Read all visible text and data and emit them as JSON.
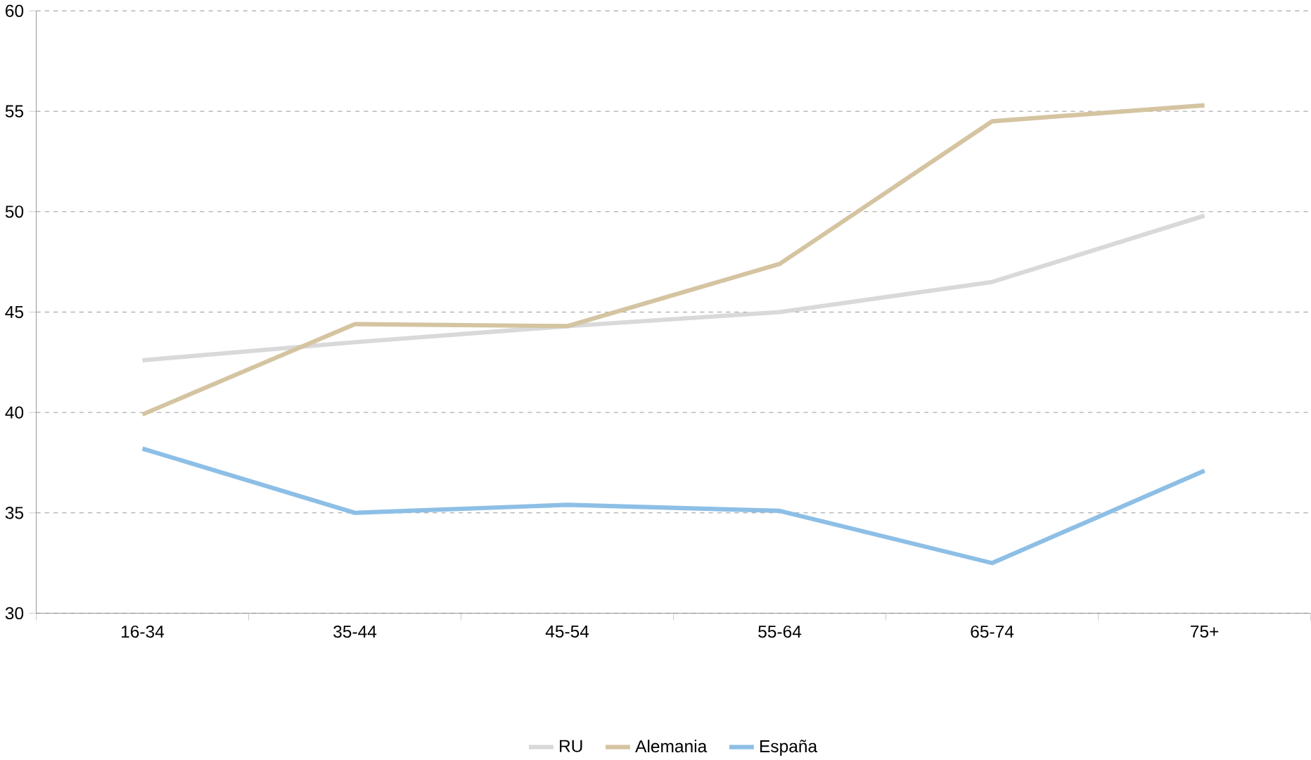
{
  "chart_data": {
    "type": "line",
    "categories": [
      "16-34",
      "35-44",
      "45-54",
      "55-64",
      "65-74",
      "75+"
    ],
    "series": [
      {
        "name": "RU",
        "color": "#d9d9d9",
        "values": [
          42.6,
          43.5,
          44.3,
          45.0,
          46.5,
          49.8
        ]
      },
      {
        "name": "Alemania",
        "color": "#d5c4a1",
        "values": [
          39.9,
          44.4,
          44.3,
          47.4,
          54.5,
          55.3
        ]
      },
      {
        "name": "España",
        "color": "#8dbfe6",
        "values": [
          38.2,
          35.0,
          35.4,
          35.1,
          32.5,
          37.1
        ]
      }
    ],
    "ylim": [
      30,
      60
    ],
    "yticks": [
      30,
      35,
      40,
      45,
      50,
      55,
      60
    ],
    "grid": "y",
    "legend": "bottom"
  }
}
